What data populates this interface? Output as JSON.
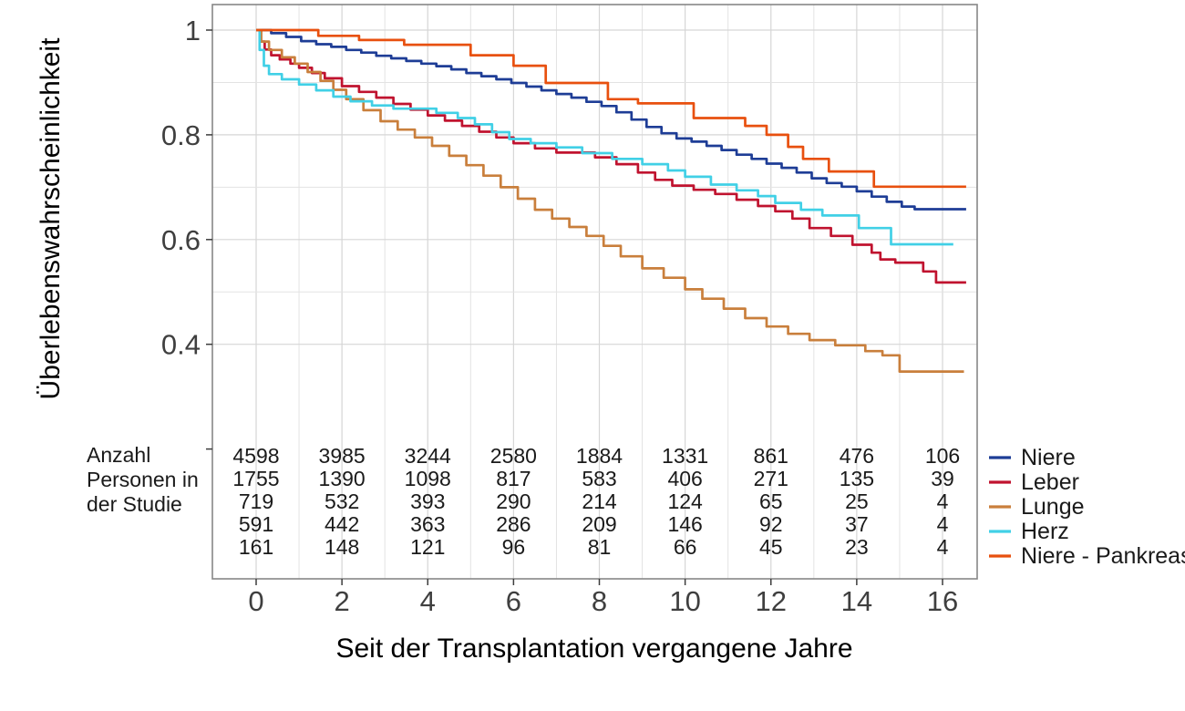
{
  "figure": {
    "background": "#ffffff",
    "panel_border_color": "#878787",
    "grid_major_color": "#d6d6d6",
    "grid_minor_color": "#e3e3e3",
    "tick_color": "#3c3c3c",
    "tick_label_color": "#3f3f3f",
    "text_color": "#1a1a1a"
  },
  "chart_data": {
    "type": "line",
    "subtype": "kaplan-meier-step",
    "title": "",
    "xlabel": "Seit der Transplantation vergangene Jahre",
    "ylabel": "Überlebenswahrscheinlichkeit",
    "xlim": [
      0,
      16.8
    ],
    "ylim": [
      0,
      1.05
    ],
    "grid": true,
    "legend_position": "bottom-right",
    "xticks": [
      {
        "value": 0,
        "label": "0"
      },
      {
        "value": 2,
        "label": "2"
      },
      {
        "value": 4,
        "label": "4"
      },
      {
        "value": 6,
        "label": "6"
      },
      {
        "value": 8,
        "label": "8"
      },
      {
        "value": 10,
        "label": "10"
      },
      {
        "value": 12,
        "label": "12"
      },
      {
        "value": 14,
        "label": "14"
      },
      {
        "value": 16,
        "label": "16"
      }
    ],
    "yticks": [
      {
        "value": 1.0,
        "label": "1"
      },
      {
        "value": 0.8,
        "label": "0.8"
      },
      {
        "value": 0.6,
        "label": "0.6"
      },
      {
        "value": 0.4,
        "label": "0.4"
      }
    ],
    "yticks_minor": [
      0.9,
      0.7,
      0.5
    ],
    "yticks_unlabeled": [
      0.2
    ],
    "xticks_minor": [
      1,
      3,
      5,
      7,
      9,
      11,
      13,
      15
    ],
    "series": [
      {
        "name": "Niere",
        "color": "#1e3d96",
        "points": [
          [
            0,
            1.0
          ],
          [
            0.35,
            0.994
          ],
          [
            0.7,
            0.987
          ],
          [
            1.05,
            0.979
          ],
          [
            1.4,
            0.973
          ],
          [
            1.75,
            0.968
          ],
          [
            2.1,
            0.962
          ],
          [
            2.45,
            0.957
          ],
          [
            2.8,
            0.951
          ],
          [
            3.15,
            0.946
          ],
          [
            3.5,
            0.941
          ],
          [
            3.85,
            0.936
          ],
          [
            4.2,
            0.931
          ],
          [
            4.55,
            0.925
          ],
          [
            4.9,
            0.918
          ],
          [
            5.25,
            0.912
          ],
          [
            5.6,
            0.906
          ],
          [
            5.95,
            0.899
          ],
          [
            6.3,
            0.892
          ],
          [
            6.65,
            0.885
          ],
          [
            7,
            0.878
          ],
          [
            7.35,
            0.871
          ],
          [
            7.7,
            0.863
          ],
          [
            8.05,
            0.855
          ],
          [
            8.4,
            0.843
          ],
          [
            8.75,
            0.829
          ],
          [
            9.1,
            0.815
          ],
          [
            9.45,
            0.803
          ],
          [
            9.8,
            0.793
          ],
          [
            10.15,
            0.787
          ],
          [
            10.5,
            0.779
          ],
          [
            10.85,
            0.771
          ],
          [
            11.2,
            0.762
          ],
          [
            11.55,
            0.754
          ],
          [
            11.9,
            0.745
          ],
          [
            12.25,
            0.737
          ],
          [
            12.6,
            0.728
          ],
          [
            12.95,
            0.717
          ],
          [
            13.3,
            0.708
          ],
          [
            13.65,
            0.701
          ],
          [
            14,
            0.692
          ],
          [
            14.35,
            0.682
          ],
          [
            14.7,
            0.672
          ],
          [
            15.05,
            0.663
          ],
          [
            15.35,
            0.658
          ],
          [
            16.55,
            0.658
          ]
        ]
      },
      {
        "name": "Leber",
        "color": "#c0132f",
        "points": [
          [
            0,
            1.0
          ],
          [
            0.1,
            0.978
          ],
          [
            0.2,
            0.963
          ],
          [
            0.35,
            0.952
          ],
          [
            0.55,
            0.944
          ],
          [
            0.8,
            0.936
          ],
          [
            1,
            0.928
          ],
          [
            1.3,
            0.918
          ],
          [
            1.6,
            0.908
          ],
          [
            2,
            0.893
          ],
          [
            2.4,
            0.882
          ],
          [
            2.8,
            0.871
          ],
          [
            3.2,
            0.859
          ],
          [
            3.6,
            0.848
          ],
          [
            4,
            0.837
          ],
          [
            4.4,
            0.827
          ],
          [
            4.8,
            0.817
          ],
          [
            5.2,
            0.806
          ],
          [
            5.6,
            0.795
          ],
          [
            6,
            0.784
          ],
          [
            6.5,
            0.774
          ],
          [
            7,
            0.766
          ],
          [
            7.9,
            0.757
          ],
          [
            8.4,
            0.744
          ],
          [
            8.9,
            0.728
          ],
          [
            9.3,
            0.714
          ],
          [
            9.7,
            0.703
          ],
          [
            10.2,
            0.695
          ],
          [
            10.7,
            0.687
          ],
          [
            11.2,
            0.676
          ],
          [
            11.7,
            0.664
          ],
          [
            12.1,
            0.654
          ],
          [
            12.5,
            0.64
          ],
          [
            12.9,
            0.622
          ],
          [
            13.4,
            0.607
          ],
          [
            13.9,
            0.59
          ],
          [
            14.35,
            0.575
          ],
          [
            14.55,
            0.562
          ],
          [
            14.9,
            0.556
          ],
          [
            15.55,
            0.539
          ],
          [
            15.85,
            0.518
          ],
          [
            16.55,
            0.518
          ]
        ]
      },
      {
        "name": "Lunge",
        "color": "#c97f3c",
        "points": [
          [
            0,
            1.0
          ],
          [
            0.12,
            0.978
          ],
          [
            0.3,
            0.962
          ],
          [
            0.6,
            0.948
          ],
          [
            0.9,
            0.936
          ],
          [
            1.2,
            0.92
          ],
          [
            1.5,
            0.903
          ],
          [
            1.8,
            0.886
          ],
          [
            2.1,
            0.868
          ],
          [
            2.5,
            0.847
          ],
          [
            2.9,
            0.826
          ],
          [
            3.3,
            0.81
          ],
          [
            3.7,
            0.795
          ],
          [
            4.1,
            0.779
          ],
          [
            4.5,
            0.76
          ],
          [
            4.9,
            0.742
          ],
          [
            5.3,
            0.722
          ],
          [
            5.7,
            0.7
          ],
          [
            6.1,
            0.678
          ],
          [
            6.5,
            0.657
          ],
          [
            6.9,
            0.64
          ],
          [
            7.3,
            0.624
          ],
          [
            7.7,
            0.607
          ],
          [
            8.1,
            0.588
          ],
          [
            8.5,
            0.568
          ],
          [
            9,
            0.545
          ],
          [
            9.5,
            0.527
          ],
          [
            10,
            0.505
          ],
          [
            10.4,
            0.487
          ],
          [
            10.9,
            0.468
          ],
          [
            11.4,
            0.45
          ],
          [
            11.9,
            0.434
          ],
          [
            12.4,
            0.42
          ],
          [
            12.9,
            0.408
          ],
          [
            13.5,
            0.398
          ],
          [
            14.2,
            0.387
          ],
          [
            14.6,
            0.379
          ],
          [
            15,
            0.348
          ],
          [
            16.5,
            0.348
          ]
        ]
      },
      {
        "name": "Herz",
        "color": "#41d0e6",
        "points": [
          [
            0,
            1.0
          ],
          [
            0.08,
            0.962
          ],
          [
            0.18,
            0.932
          ],
          [
            0.3,
            0.916
          ],
          [
            0.6,
            0.906
          ],
          [
            1,
            0.896
          ],
          [
            1.4,
            0.885
          ],
          [
            1.8,
            0.873
          ],
          [
            2.2,
            0.864
          ],
          [
            2.7,
            0.856
          ],
          [
            3.2,
            0.85
          ],
          [
            4.2,
            0.842
          ],
          [
            4.7,
            0.832
          ],
          [
            5.1,
            0.82
          ],
          [
            5.5,
            0.805
          ],
          [
            5.9,
            0.792
          ],
          [
            6.4,
            0.784
          ],
          [
            7,
            0.776
          ],
          [
            7.6,
            0.765
          ],
          [
            8.3,
            0.754
          ],
          [
            9,
            0.744
          ],
          [
            9.6,
            0.732
          ],
          [
            10,
            0.72
          ],
          [
            10.6,
            0.705
          ],
          [
            11.2,
            0.694
          ],
          [
            11.7,
            0.683
          ],
          [
            12.1,
            0.67
          ],
          [
            12.7,
            0.657
          ],
          [
            13.2,
            0.646
          ],
          [
            14.05,
            0.622
          ],
          [
            14.8,
            0.591
          ],
          [
            16.25,
            0.591
          ]
        ]
      },
      {
        "name": "Niere - Pankreas",
        "color": "#e8500f",
        "points": [
          [
            0,
            1.0
          ],
          [
            1.45,
            0.989
          ],
          [
            2.4,
            0.981
          ],
          [
            3.45,
            0.972
          ],
          [
            5,
            0.952
          ],
          [
            6,
            0.932
          ],
          [
            6.75,
            0.899
          ],
          [
            8.2,
            0.868
          ],
          [
            8.9,
            0.86
          ],
          [
            10.2,
            0.832
          ],
          [
            11.4,
            0.817
          ],
          [
            11.9,
            0.8
          ],
          [
            12.4,
            0.777
          ],
          [
            12.75,
            0.754
          ],
          [
            13.35,
            0.73
          ],
          [
            14.4,
            0.701
          ],
          [
            16.55,
            0.701
          ]
        ]
      }
    ]
  },
  "risk_table": {
    "label_lines": [
      "Anzahl",
      "Personen in",
      "der Studie"
    ],
    "times": [
      0,
      2,
      4,
      6,
      8,
      10,
      12,
      14,
      16
    ],
    "rows": [
      {
        "name": "Niere",
        "counts": [
          4598,
          3985,
          3244,
          2580,
          1884,
          1331,
          861,
          476,
          106
        ]
      },
      {
        "name": "Leber",
        "counts": [
          1755,
          1390,
          1098,
          817,
          583,
          406,
          271,
          135,
          39
        ]
      },
      {
        "name": "Lunge",
        "counts": [
          719,
          532,
          393,
          290,
          214,
          124,
          65,
          25,
          4
        ]
      },
      {
        "name": "Herz",
        "counts": [
          591,
          442,
          363,
          286,
          209,
          146,
          92,
          37,
          4
        ]
      },
      {
        "name": "Niere - Pankreas",
        "counts": [
          161,
          148,
          121,
          96,
          81,
          66,
          45,
          23,
          4
        ]
      }
    ]
  },
  "legend": {
    "items": [
      {
        "label": "Niere",
        "color": "#1e3d96"
      },
      {
        "label": "Leber",
        "color": "#c0132f"
      },
      {
        "label": "Lunge",
        "color": "#c97f3c"
      },
      {
        "label": "Herz",
        "color": "#41d0e6"
      },
      {
        "label": "Niere - Pankreas",
        "color": "#e8500f"
      }
    ]
  }
}
